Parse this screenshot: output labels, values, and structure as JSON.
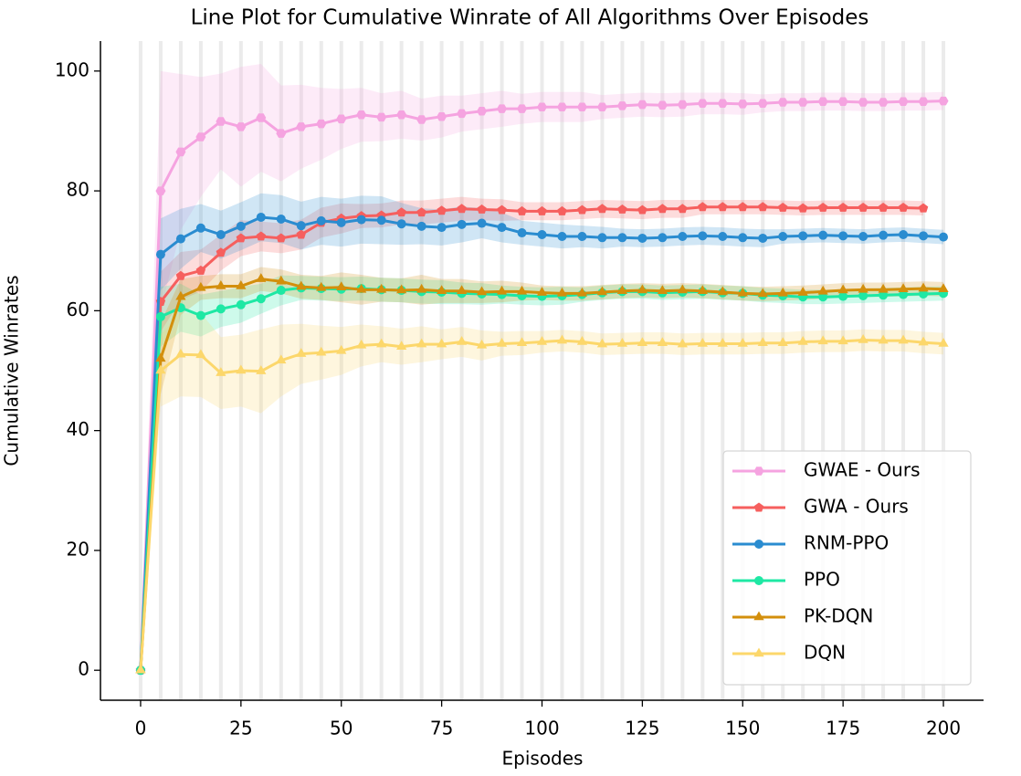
{
  "chart_data": {
    "type": "line",
    "title": "Line Plot for Cumulative Winrate of All Algorithms Over Episodes",
    "xlabel": "Episodes",
    "ylabel": "Cumulative Winrates",
    "x": [
      0,
      5,
      10,
      15,
      20,
      25,
      30,
      35,
      40,
      45,
      50,
      55,
      60,
      65,
      70,
      75,
      80,
      85,
      90,
      95,
      100,
      105,
      110,
      115,
      120,
      125,
      130,
      135,
      140,
      145,
      150,
      155,
      160,
      165,
      170,
      175,
      180,
      185,
      190,
      195,
      200
    ],
    "xlim": [
      -10,
      210
    ],
    "xticks": [
      0,
      25,
      50,
      75,
      100,
      125,
      150,
      175,
      200
    ],
    "ylim": [
      -5,
      105
    ],
    "yticks": [
      0,
      20,
      40,
      60,
      80,
      100
    ],
    "xgrid": true,
    "legend": "lower right",
    "series": [
      {
        "name": "GWAE - Ours",
        "color": "#f5a3e0",
        "marker": "hexagon",
        "values": [
          0,
          80,
          86.5,
          89,
          91.6,
          90.7,
          92.2,
          89.6,
          90.7,
          91.2,
          92,
          92.7,
          92.3,
          92.7,
          91.9,
          92.4,
          92.9,
          93.3,
          93.7,
          93.7,
          94,
          94,
          94,
          94,
          94.2,
          94.4,
          94.3,
          94.4,
          94.6,
          94.6,
          94.5,
          94.6,
          94.8,
          94.8,
          94.9,
          94.9,
          94.8,
          94.8,
          94.9,
          94.9,
          95
        ],
        "error": [
          0,
          20,
          13,
          10,
          8,
          10,
          9,
          8,
          7,
          6,
          5,
          4.5,
          4,
          4,
          3.5,
          3.5,
          3,
          3,
          3,
          2.5,
          2.5,
          2.5,
          2.5,
          2,
          2,
          2,
          2,
          2,
          1.8,
          1.8,
          1.8,
          1.5,
          1.5,
          1.5,
          1.5,
          1.5,
          1.5,
          1.5,
          1.5,
          1.5,
          1.5
        ]
      },
      {
        "name": "GWA - Ours",
        "color": "#f65f5e",
        "marker": "pentagon",
        "values": [
          0,
          61.5,
          65.8,
          66.7,
          69.7,
          72.1,
          72.4,
          72.1,
          72.7,
          74.7,
          75.4,
          75.8,
          75.9,
          76.4,
          76.4,
          76.7,
          77,
          76.9,
          76.8,
          76.6,
          76.6,
          76.6,
          76.8,
          77,
          76.9,
          76.8,
          77,
          77,
          77.3,
          77.3,
          77.3,
          77.3,
          77.2,
          77.1,
          77.2,
          77.2,
          77.2,
          77.2,
          77.2,
          77.1,
          null
        ],
        "error": [
          0,
          5,
          4,
          3.5,
          3,
          3,
          2.5,
          2.5,
          2.5,
          2.5,
          2.5,
          2,
          2,
          2,
          2,
          2,
          2,
          1.8,
          1.8,
          1.5,
          1.5,
          1.5,
          1.5,
          1.5,
          1.5,
          1.5,
          1.5,
          1.5,
          1.2,
          1.2,
          1.2,
          1.2,
          1.2,
          1.2,
          1.2,
          1.2,
          1.2,
          1.2,
          1.2,
          1.2,
          null
        ]
      },
      {
        "name": "RNM-PPO",
        "color": "#2a8cd0",
        "marker": "circle",
        "values": [
          0,
          69.4,
          72,
          73.8,
          72.7,
          74.1,
          75.6,
          75.3,
          74.2,
          75,
          74.7,
          75.2,
          75.1,
          74.5,
          74.1,
          73.9,
          74.4,
          74.6,
          73.9,
          73,
          72.7,
          72.4,
          72.4,
          72.2,
          72.2,
          72.1,
          72.2,
          72.4,
          72.5,
          72.4,
          72.2,
          72.1,
          72.4,
          72.5,
          72.6,
          72.5,
          72.4,
          72.6,
          72.7,
          72.5,
          72.3
        ],
        "error": [
          0,
          6,
          5,
          4,
          4,
          4,
          4,
          4,
          4,
          4,
          4,
          4,
          4,
          3.5,
          3,
          3,
          3,
          2.5,
          2.5,
          2,
          2,
          2,
          1.8,
          1.8,
          1.5,
          1.5,
          1.5,
          1.5,
          1.5,
          1.5,
          1.5,
          1.5,
          1.2,
          1.2,
          1.2,
          1.2,
          1.2,
          1.2,
          1.2,
          1.2,
          1.2
        ]
      },
      {
        "name": "PPO",
        "color": "#1ee8a4",
        "marker": "circle",
        "values": [
          0,
          59,
          60.5,
          59.2,
          60.3,
          61,
          62,
          63.4,
          63.8,
          63.7,
          63.6,
          63.7,
          63.5,
          63.4,
          63.2,
          63.1,
          62.9,
          62.8,
          62.7,
          62.5,
          62.4,
          62.5,
          62.7,
          63,
          63.2,
          63.2,
          63,
          63.1,
          63.2,
          63,
          62.9,
          62.6,
          62.5,
          62.3,
          62.3,
          62.4,
          62.5,
          62.6,
          62.7,
          62.8,
          62.9
        ],
        "error": [
          0,
          5,
          4,
          3.5,
          3,
          3,
          2.5,
          2.5,
          2,
          2,
          2,
          2,
          2,
          2,
          2,
          2,
          1.8,
          1.8,
          1.5,
          1.5,
          1.5,
          1.5,
          1.2,
          1.2,
          1.2,
          1.2,
          1.2,
          1.2,
          1.2,
          1.2,
          1.2,
          1.2,
          1.2,
          1.2,
          1.2,
          1.2,
          1.2,
          1.2,
          1.2,
          1.2,
          1.2
        ]
      },
      {
        "name": "PK-DQN",
        "color": "#d38f0c",
        "marker": "triangle",
        "values": [
          0,
          52,
          62.3,
          63.8,
          64.1,
          64.1,
          65.3,
          64.9,
          64,
          63.8,
          63.9,
          63.5,
          63.5,
          63.4,
          63.5,
          63.3,
          63.3,
          63.1,
          63.2,
          63.2,
          63,
          62.9,
          62.9,
          63.1,
          63.3,
          63.4,
          63.3,
          63.4,
          63.3,
          63.1,
          62.9,
          62.8,
          62.9,
          63,
          63.2,
          63.4,
          63.5,
          63.5,
          63.6,
          63.7,
          63.6
        ],
        "error": [
          0,
          6,
          3,
          2,
          2,
          2,
          2,
          2,
          2,
          2,
          2.5,
          2.5,
          2,
          2,
          2.5,
          2,
          2,
          1.8,
          1.8,
          1.5,
          1.2,
          1.2,
          1.2,
          1.2,
          1.2,
          1.2,
          1.2,
          1.2,
          1.2,
          1.2,
          1.2,
          1.2,
          1.2,
          1.2,
          1.2,
          1.2,
          1.2,
          1.2,
          1.2,
          1.2,
          1.2
        ]
      },
      {
        "name": "DQN",
        "color": "#fcd76b",
        "marker": "triangle",
        "values": [
          0,
          50,
          52.7,
          52.6,
          49.6,
          50,
          49.9,
          51.7,
          52.8,
          53,
          53.3,
          54.2,
          54.4,
          54,
          54.4,
          54.4,
          54.8,
          54.2,
          54.5,
          54.6,
          54.8,
          55,
          54.8,
          54.4,
          54.5,
          54.6,
          54.6,
          54.4,
          54.5,
          54.5,
          54.5,
          54.6,
          54.6,
          54.8,
          54.9,
          54.9,
          55.1,
          55,
          55,
          54.7,
          54.5
        ],
        "error": [
          0,
          6,
          7,
          7,
          6,
          6,
          7,
          6,
          5,
          4.5,
          4,
          3.5,
          3,
          3,
          3,
          2.5,
          2.5,
          2.5,
          2,
          2,
          1.8,
          1.8,
          1.8,
          1.8,
          1.8,
          1.8,
          1.8,
          1.8,
          1.8,
          1.8,
          1.8,
          1.8,
          1.8,
          1.8,
          1.8,
          1.8,
          1.8,
          1.8,
          1.8,
          1.8,
          1.8
        ]
      }
    ]
  }
}
